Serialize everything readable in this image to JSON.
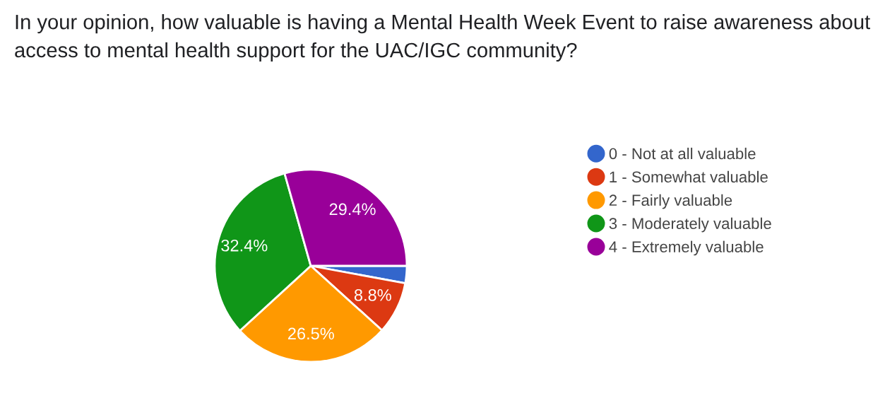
{
  "chart_data": {
    "type": "pie",
    "title": "In your opinion, how valuable is having a Mental Health Week Event to raise awareness about access to mental health support for the UAC/IGC community?",
    "categories": [
      "0 - Not at all valuable",
      "1 - Somewhat valuable",
      "2 - Fairly valuable",
      "3 - Moderately valuable",
      "4 - Extremely valuable"
    ],
    "values": [
      2.9,
      8.8,
      26.5,
      32.4,
      29.4
    ],
    "colors": [
      "#3366cc",
      "#dc3912",
      "#ff9900",
      "#109618",
      "#990099"
    ],
    "value_labels": [
      null,
      "8.8%",
      "26.5%",
      "32.4%",
      "29.4%"
    ],
    "legend": "right"
  }
}
